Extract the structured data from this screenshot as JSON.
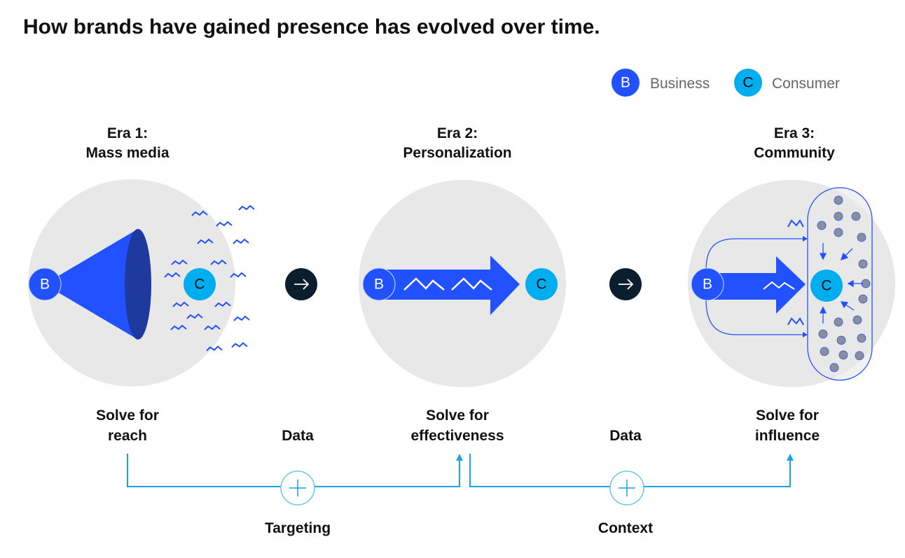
{
  "title": "How brands have gained presence has evolved over time.",
  "legend": {
    "business": {
      "letter": "B",
      "label": "Business"
    },
    "consumer": {
      "letter": "C",
      "label": "Consumer"
    }
  },
  "eras": [
    {
      "line1": "Era 1:",
      "line2": "Mass media",
      "solve1": "Solve for",
      "solve2": "reach"
    },
    {
      "line1": "Era 2:",
      "line2": "Personalization",
      "solve1": "Solve for",
      "solve2": "effectiveness"
    },
    {
      "line1": "Era 3:",
      "line2": "Community",
      "solve1": "Solve for",
      "solve2": "influence"
    }
  ],
  "transitions": [
    {
      "input": "Data",
      "result": "Targeting",
      "icon": "arrow-right-icon"
    },
    {
      "input": "Data",
      "result": "Context",
      "icon": "arrow-right-icon"
    }
  ],
  "colors": {
    "business": "#2251ff",
    "consumer": "#00aeef",
    "connector": "#1aa3e8",
    "background_circle": "#e8e8e8",
    "dark": "#0b1e2e"
  }
}
